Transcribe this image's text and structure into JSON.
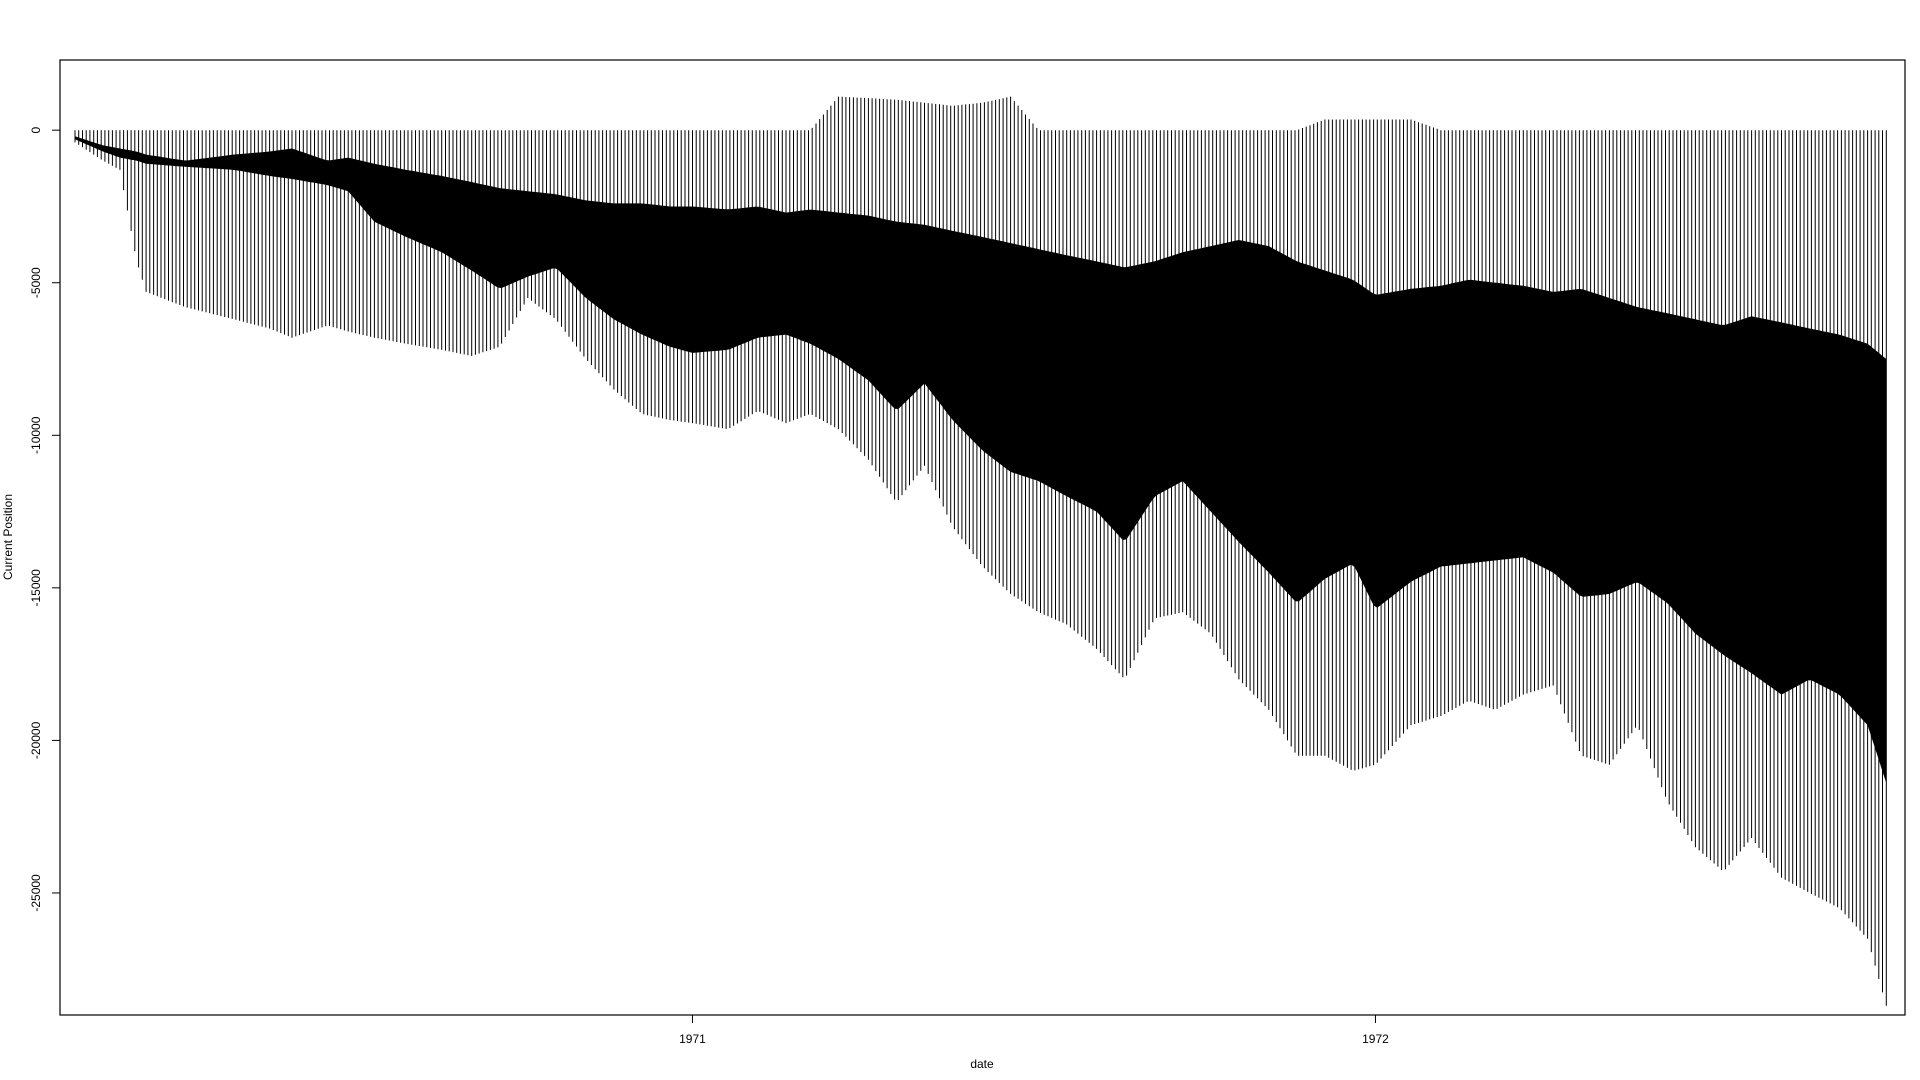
{
  "chart_data": {
    "type": "bar",
    "subtype": "high-low range bars per date",
    "title": "",
    "xlabel": "date",
    "ylabel": "Current Position",
    "x_ticks": [
      {
        "label": "1971",
        "date": "1971-01-01"
      },
      {
        "label": "1972",
        "date": "1972-01-01"
      }
    ],
    "y_ticks": [
      0,
      -5000,
      -10000,
      -15000,
      -20000,
      -25000
    ],
    "ylim": [
      -29000,
      2300
    ],
    "xlim": [
      "1970-01-28",
      "1972-10-10"
    ],
    "grid": false,
    "legend": "none",
    "colors": {
      "bars": "#000000",
      "background": "#ffffff"
    },
    "series": [
      {
        "name": "",
        "x": [
          "1970-02-05",
          "1970-02-20",
          "1970-03-01",
          "1970-03-10",
          "1970-03-15",
          "1970-04-05",
          "1970-05-01",
          "1970-05-20",
          "1970-06-01",
          "1970-06-20",
          "1970-07-01",
          "1970-07-15",
          "1970-08-01",
          "1970-08-20",
          "1970-09-05",
          "1970-09-20",
          "1970-10-05",
          "1970-10-20",
          "1970-11-05",
          "1970-11-20",
          "1970-12-05",
          "1970-12-20",
          "1971-01-01",
          "1971-01-20",
          "1971-02-05",
          "1971-02-20",
          "1971-03-05",
          "1971-03-20",
          "1971-04-05",
          "1971-04-20",
          "1971-05-05",
          "1971-05-20",
          "1971-06-05",
          "1971-06-20",
          "1971-07-05",
          "1971-07-20",
          "1971-08-05",
          "1971-08-20",
          "1971-09-05",
          "1971-09-20",
          "1971-10-05",
          "1971-10-20",
          "1971-11-05",
          "1971-11-20",
          "1971-12-05",
          "1971-12-20",
          "1972-01-01",
          "1972-01-20",
          "1972-02-05",
          "1972-02-20",
          "1972-03-05",
          "1972-03-20",
          "1972-04-05",
          "1972-04-20",
          "1972-05-05",
          "1972-05-20",
          "1972-06-05",
          "1972-06-20",
          "1972-07-05",
          "1972-07-20",
          "1972-08-05",
          "1972-08-20",
          "1972-09-05",
          "1972-09-20",
          "1972-09-30"
        ],
        "high": [
          0,
          0,
          0,
          0,
          0,
          0,
          0,
          0,
          0,
          0,
          0,
          0,
          0,
          0,
          0,
          0,
          0,
          0,
          0,
          0,
          0,
          0,
          0,
          0,
          0,
          0,
          0,
          1100,
          1050,
          1000,
          900,
          800,
          900,
          1100,
          0,
          0,
          0,
          0,
          0,
          0,
          0,
          0,
          0,
          0,
          350,
          350,
          350,
          350,
          0,
          0,
          0,
          0,
          0,
          0,
          0,
          0,
          0,
          0,
          0,
          0,
          0,
          0,
          0,
          0,
          0
        ],
        "low": [
          -400,
          -1000,
          -1300,
          -4300,
          -5300,
          -5800,
          -6200,
          -6500,
          -6800,
          -6400,
          -6600,
          -6800,
          -7000,
          -7200,
          -7400,
          -7100,
          -5500,
          -6200,
          -7500,
          -8500,
          -9300,
          -9500,
          -9600,
          -9800,
          -9200,
          -9600,
          -9300,
          -9800,
          -10800,
          -12200,
          -11000,
          -13000,
          -14300,
          -15200,
          -15800,
          -16200,
          -17000,
          -18000,
          -16000,
          -15800,
          -16500,
          -18000,
          -19000,
          -20500,
          -20500,
          -21000,
          -20800,
          -19500,
          -19200,
          -18700,
          -19000,
          -18500,
          -18200,
          -20500,
          -20800,
          -19500,
          -22000,
          -23500,
          -24300,
          -23200,
          -24500,
          -25000,
          -25500,
          -26500,
          -28700
        ],
        "inner_high": [
          -200,
          -500,
          -600,
          -700,
          -800,
          -1000,
          -800,
          -700,
          -600,
          -1000,
          -900,
          -1100,
          -1300,
          -1500,
          -1700,
          -1900,
          -2000,
          -2100,
          -2300,
          -2400,
          -2400,
          -2500,
          -2500,
          -2600,
          -2500,
          -2700,
          -2600,
          -2700,
          -2800,
          -3000,
          -3100,
          -3300,
          -3500,
          -3700,
          -3900,
          -4100,
          -4300,
          -4500,
          -4300,
          -4000,
          -3800,
          -3600,
          -3800,
          -4300,
          -4600,
          -4900,
          -5400,
          -5200,
          -5100,
          -4900,
          -5000,
          -5100,
          -5300,
          -5200,
          -5500,
          -5800,
          -6000,
          -6200,
          -6400,
          -6100,
          -6300,
          -6500,
          -6700,
          -7000,
          -7500
        ],
        "inner_low": [
          -300,
          -700,
          -900,
          -1000,
          -1100,
          -1200,
          -1300,
          -1500,
          -1600,
          -1800,
          -2000,
          -3000,
          -3500,
          -4000,
          -4600,
          -5200,
          -4800,
          -4500,
          -5500,
          -6200,
          -6700,
          -7100,
          -7300,
          -7200,
          -6800,
          -6700,
          -7000,
          -7500,
          -8200,
          -9200,
          -8300,
          -9500,
          -10500,
          -11200,
          -11500,
          -12000,
          -12500,
          -13500,
          -12000,
          -11500,
          -12500,
          -13500,
          -14500,
          -15500,
          -14700,
          -14200,
          -15700,
          -14800,
          -14300,
          -14200,
          -14100,
          -14000,
          -14500,
          -15300,
          -15200,
          -14800,
          -15500,
          -16500,
          -17200,
          -17800,
          -18500,
          -18000,
          -18500,
          -19500,
          -21400
        ]
      }
    ]
  }
}
